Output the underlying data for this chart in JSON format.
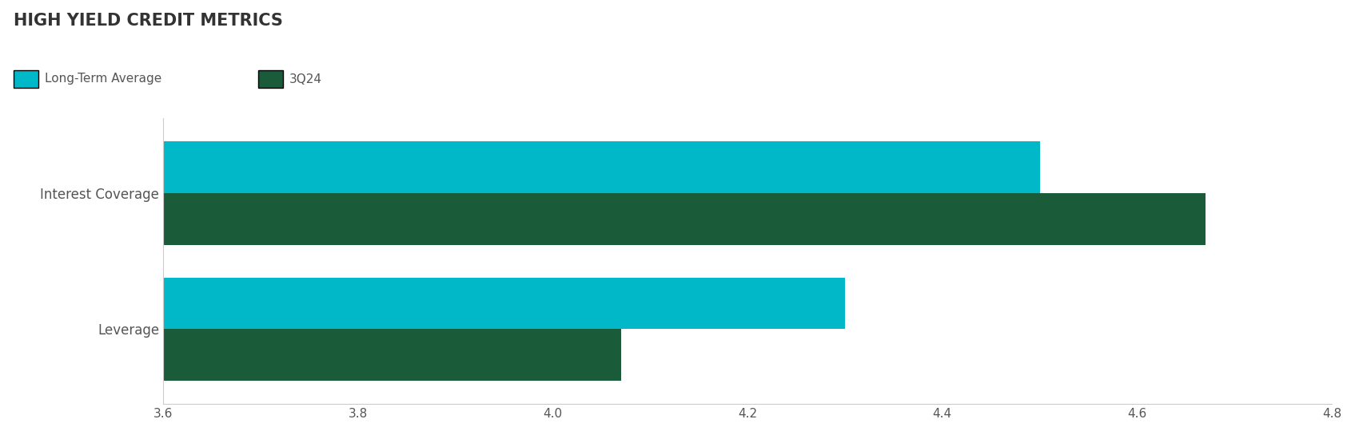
{
  "title": "HIGH YIELD CREDIT METRICS",
  "categories": [
    "Interest Coverage",
    "Leverage"
  ],
  "series": {
    "Long-Term Average": [
      4.5,
      4.3
    ],
    "3Q24": [
      4.67,
      4.07
    ]
  },
  "colors": {
    "Long-Term Average": "#00B8C8",
    "3Q24": "#1A5C3A"
  },
  "xlim": [
    3.6,
    4.8
  ],
  "xticks": [
    3.6,
    3.8,
    4.0,
    4.2,
    4.4,
    4.6,
    4.8
  ],
  "bar_height": 0.38,
  "bar_gap": 0.0,
  "title_fontsize": 15,
  "label_fontsize": 12,
  "tick_fontsize": 11,
  "legend_fontsize": 11,
  "background_color": "#ffffff",
  "axis_color": "#cccccc",
  "text_color": "#555555"
}
